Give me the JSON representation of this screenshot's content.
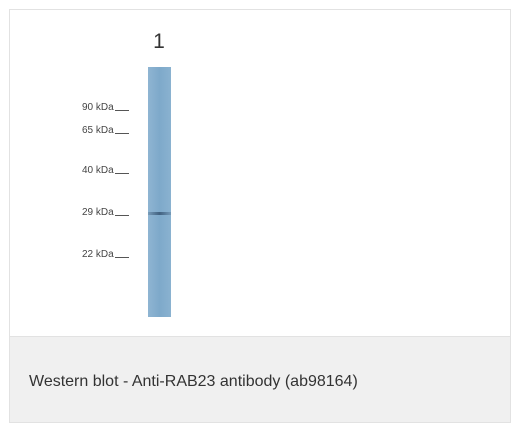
{
  "blot": {
    "lane_label": "1",
    "markers": [
      {
        "label": "90 kDa"
      },
      {
        "label": "65 kDa"
      },
      {
        "label": "40 kDa"
      },
      {
        "label": "29 kDa"
      },
      {
        "label": "22 kDa"
      }
    ],
    "colors": {
      "lane": "#80abca",
      "band": "#3d5f80"
    }
  },
  "caption": {
    "text": "Western blot - Anti-RAB23 antibody (ab98164)"
  }
}
